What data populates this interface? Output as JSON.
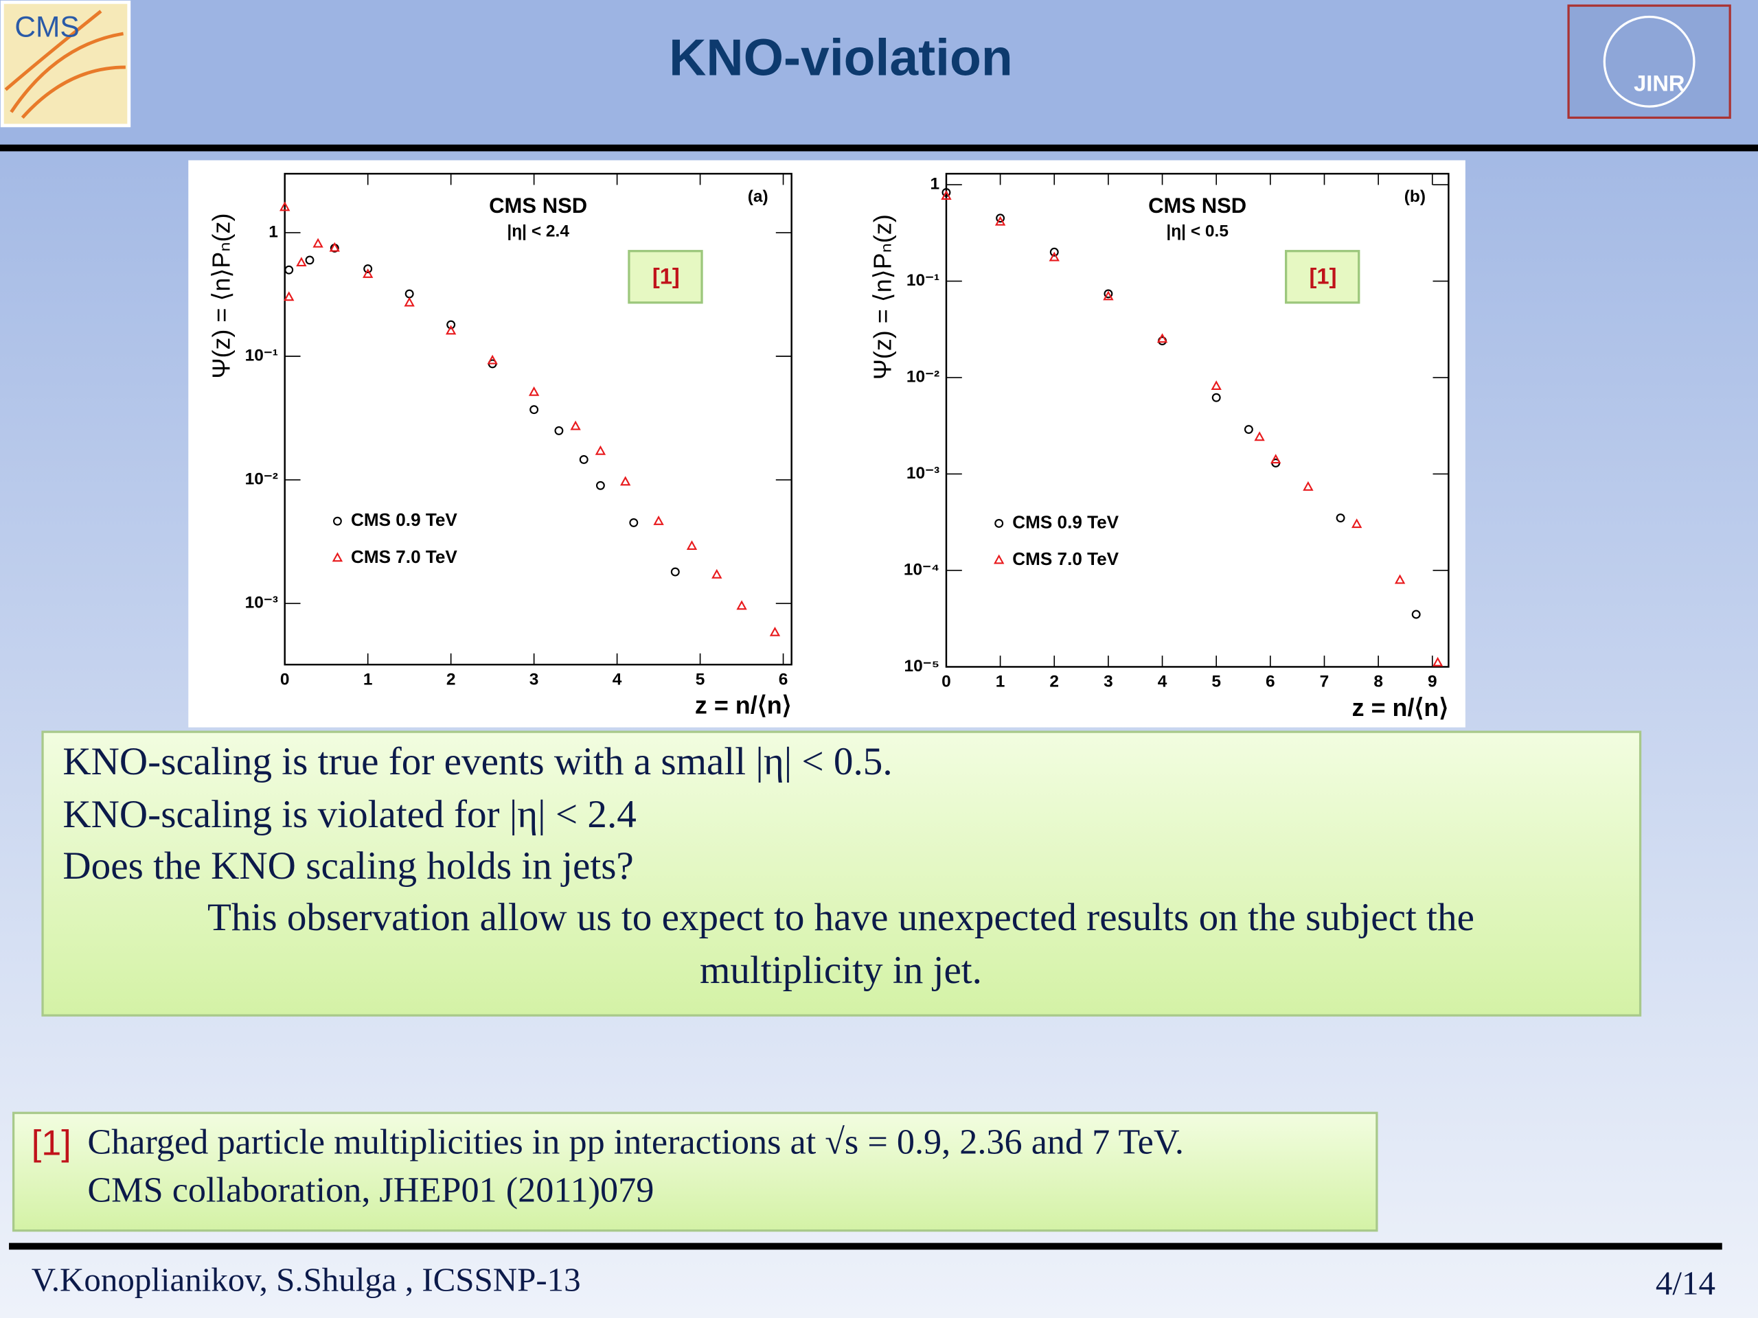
{
  "header": {
    "title": "KNO-violation",
    "left_logo": "CMS",
    "right_logo": "JINR"
  },
  "chart_data": [
    {
      "type": "scatter",
      "title": "CMS NSD",
      "subtitle": "|η| < 2.4",
      "panel_label": "(a)",
      "annotation": "[1]",
      "x_label": "z = n/⟨n⟩",
      "y_label": "Ψ(z) = ⟨n⟩Pₙ(z)",
      "log_y": true,
      "legend": "lower left",
      "series": [
        {
          "name": "CMS 0.9 TeV",
          "color": "#000000",
          "marker": "circle",
          "x": [
            0.05,
            0.3,
            0.6,
            1,
            1.5,
            2,
            2.5,
            3,
            3.3,
            3.6,
            3.8,
            4.2,
            4.7
          ],
          "values": [
            0.5,
            0.6,
            0.75,
            0.51,
            0.32,
            0.18,
            0.087,
            0.037,
            0.025,
            0.0146,
            0.009,
            0.0045,
            0.0018
          ]
        },
        {
          "name": "CMS 7.0 TeV",
          "color": "#e8191c",
          "marker": "triangle",
          "x": [
            0,
            0.05,
            0.2,
            0.4,
            0.6,
            1,
            1.5,
            2,
            2.5,
            3,
            3.5,
            3.8,
            4.1,
            4.5,
            4.9,
            5.2,
            5.5,
            5.9
          ],
          "values": [
            1.6,
            0.3,
            0.57,
            0.81,
            0.75,
            0.46,
            0.27,
            0.16,
            0.092,
            0.051,
            0.027,
            0.017,
            0.0096,
            0.0046,
            0.0029,
            0.0017,
            0.00095,
            0.00058
          ]
        }
      ],
      "xlim": [
        0,
        6.1
      ],
      "ylim": [
        0.00032,
        3
      ],
      "xticks": [
        0,
        1,
        2,
        3,
        4,
        5,
        6
      ],
      "yticks": [
        {
          "value": 0.001,
          "label": "10⁻³"
        },
        {
          "value": 0.01,
          "label": "10⁻²"
        },
        {
          "value": 0.1,
          "label": "10⁻¹"
        },
        1
      ]
    },
    {
      "type": "scatter",
      "title": "CMS NSD",
      "subtitle": "|η| < 0.5",
      "panel_label": "(b)",
      "annotation": "[1]",
      "x_label": "z = n/⟨n⟩",
      "y_label": "Ψ(z) = ⟨n⟩Pₙ(z)",
      "log_y": true,
      "legend": "lower left",
      "series": [
        {
          "name": "CMS 0.9 TeV",
          "color": "#000000",
          "marker": "circle",
          "x": [
            0,
            1,
            2,
            3,
            4,
            5,
            5.6,
            6.1,
            7.3,
            8.7
          ],
          "values": [
            0.83,
            0.45,
            0.2,
            0.074,
            0.024,
            0.0062,
            0.0029,
            0.0013,
            0.00035,
            3.5e-05
          ]
        },
        {
          "name": "CMS 7.0 TeV",
          "color": "#e8191c",
          "marker": "triangle",
          "x": [
            0,
            1,
            2,
            3,
            4,
            5,
            5.8,
            6.1,
            6.7,
            7.6,
            8.4,
            9.1
          ],
          "values": [
            0.76,
            0.41,
            0.175,
            0.069,
            0.025,
            0.0081,
            0.0024,
            0.0014,
            0.00073,
            0.0003,
            7.9e-05,
            1.1e-05
          ]
        }
      ],
      "xlim": [
        0,
        9.3
      ],
      "ylim": [
        1e-05,
        1.3
      ],
      "xticks": [
        0,
        1,
        2,
        3,
        4,
        5,
        6,
        7,
        8,
        9
      ],
      "yticks": [
        {
          "value": 1e-05,
          "label": "10⁻⁵"
        },
        {
          "value": 0.0001,
          "label": "10⁻⁴"
        },
        {
          "value": 0.001,
          "label": "10⁻³"
        },
        {
          "value": 0.01,
          "label": "10⁻²"
        },
        {
          "value": 0.1,
          "label": "10⁻¹"
        },
        1
      ]
    }
  ],
  "summary": {
    "lines": [
      "KNO-scaling is true for events with a small |η| < 0.5.",
      "KNO-scaling is violated for |η| < 2.4",
      "Does the KNO scaling holds in jets?",
      "This observation allow us to expect to have unexpected results on the subject the",
      "multiplicity in jet."
    ]
  },
  "reference": {
    "marker": "[1]",
    "lines": [
      "Charged particle multiplicities in pp interactions at √s = 0.9, 2.36 and 7 TeV.",
      "CMS collaboration, JHEP01 (2011)079"
    ]
  },
  "footer": {
    "authors": "V.Konoplianikov, S.Shulga , ICSSNP-13",
    "page": "4/14"
  }
}
